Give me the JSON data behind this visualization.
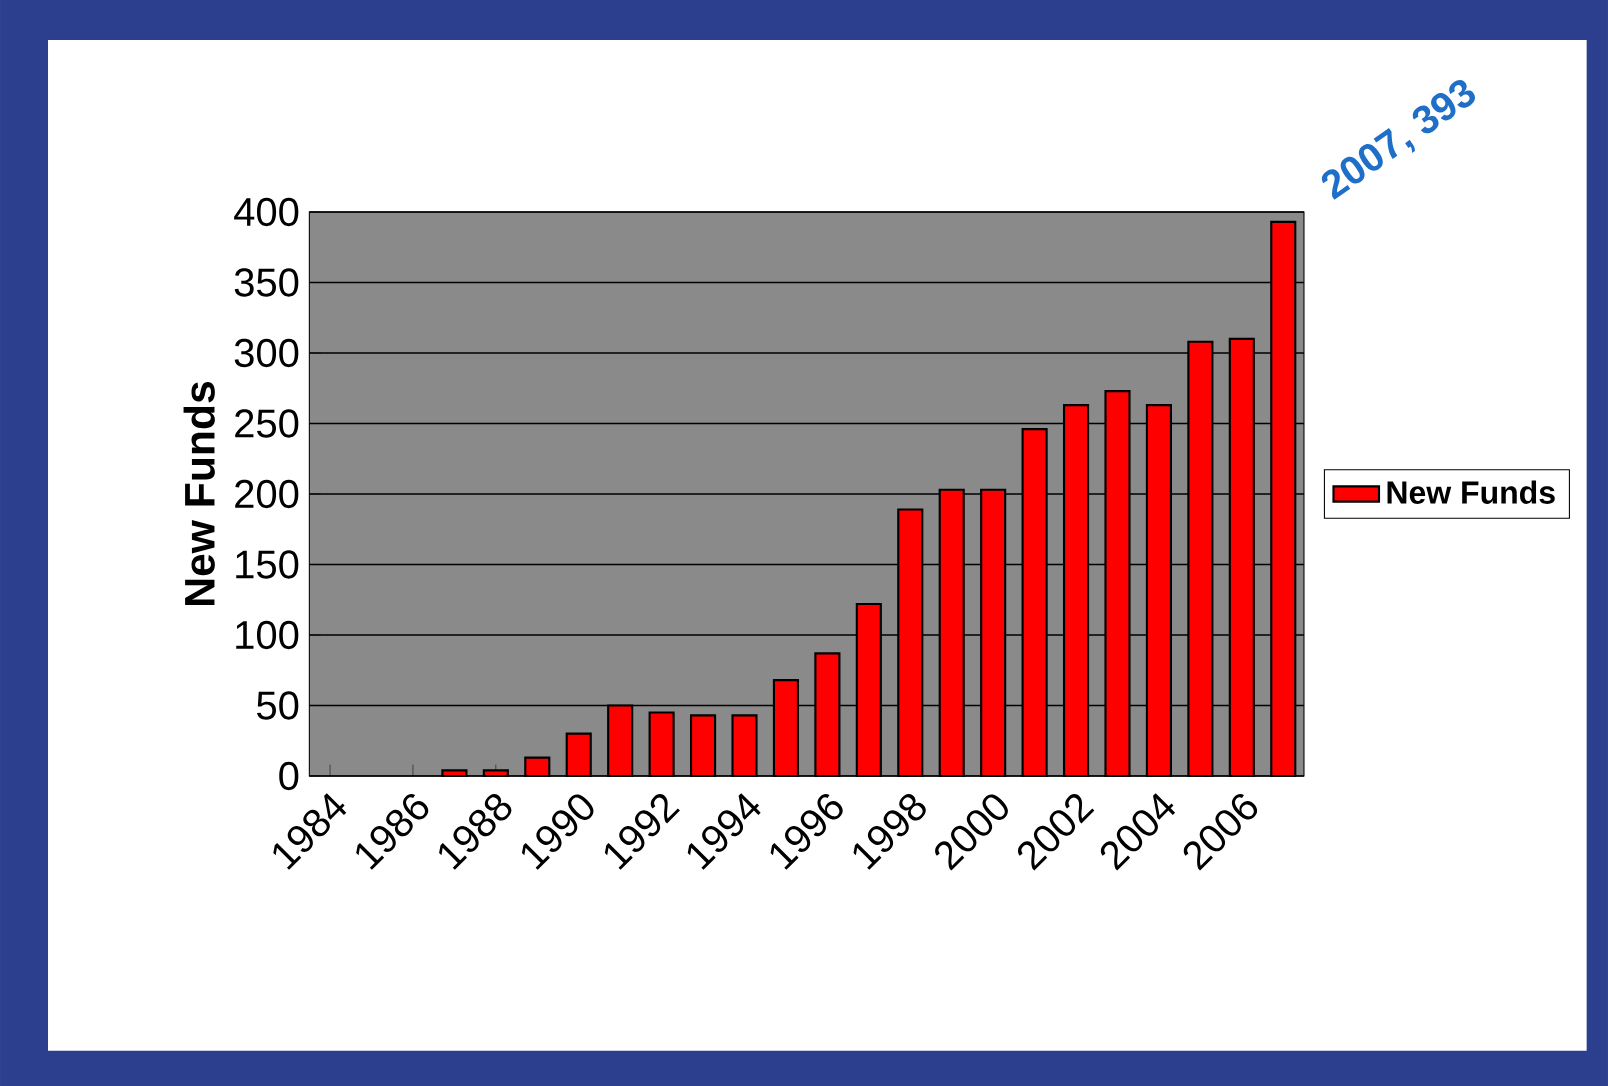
{
  "chart_data": {
    "type": "bar",
    "ylabel": "New Funds",
    "categories": [
      "1984",
      null,
      "1986",
      null,
      "1988",
      null,
      "1990",
      null,
      "1992",
      null,
      "1994",
      null,
      "1996",
      null,
      "1998",
      null,
      "2000",
      null,
      "2002",
      null,
      "2004",
      null,
      "2006",
      null
    ],
    "series": [
      {
        "name": "New Funds",
        "color": "#ff0000",
        "values": [
          null,
          null,
          null,
          4,
          4,
          13,
          30,
          50,
          45,
          43,
          43,
          68,
          87,
          122,
          189,
          203,
          203,
          246,
          263,
          273,
          263,
          308,
          310,
          393
        ]
      }
    ],
    "ylim": [
      0,
      400
    ],
    "yticks": [
      0,
      50,
      100,
      150,
      200,
      250,
      300,
      350,
      400
    ],
    "grid": "y",
    "legend": "right",
    "annotations": [
      "2007, 393"
    ]
  }
}
